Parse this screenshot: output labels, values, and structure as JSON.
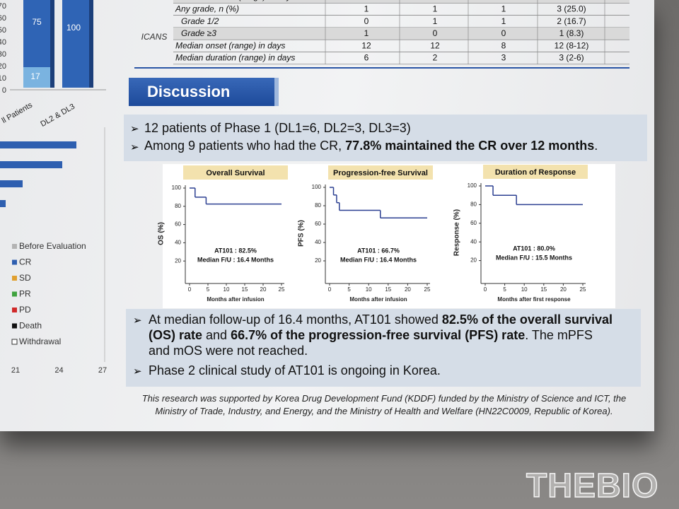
{
  "left_bar_chart": {
    "yticks": [
      0,
      10,
      20,
      30,
      40,
      50,
      60,
      70
    ],
    "bar_labels": [
      "75",
      "100",
      "17"
    ],
    "categories": [
      "ll Patients",
      "DL2 & DL3"
    ]
  },
  "left_swimmer_legend": {
    "entries": [
      {
        "label": "Before Evaluation",
        "color": "#b3b3b3"
      },
      {
        "label": "CR",
        "color": "#2e5fb0"
      },
      {
        "label": "SD",
        "color": "#e0a030"
      },
      {
        "label": "PR",
        "color": "#3fa33f"
      },
      {
        "label": "PD",
        "color": "#d02a2a"
      },
      {
        "label": "Death",
        "color": "#111111"
      },
      {
        "label": "Withdrawal",
        "color": "#ffffff"
      }
    ],
    "xticks": [
      21,
      24,
      27
    ]
  },
  "table": {
    "group_label": "ICANS",
    "rows": [
      [
        "Median duration (range) in days",
        "",
        "",
        "",
        ""
      ],
      [
        "Any grade, n (%)",
        "1",
        "1",
        "1",
        "3 (25.0)"
      ],
      [
        "Grade 1/2",
        "0",
        "1",
        "1",
        "2 (16.7)"
      ],
      [
        "Grade ≥3",
        "1",
        "0",
        "0",
        "1 (8.3)"
      ],
      [
        "Median onset (range) in days",
        "12",
        "12",
        "8",
        "12 (8-12)"
      ],
      [
        "Median duration (range) in days",
        "6",
        "2",
        "3",
        "3 (2-6)"
      ]
    ]
  },
  "section_title": "Discussion",
  "bullets_top": [
    [
      "12 patients of Phase 1 (DL1=6, DL2=3, DL3=3)"
    ],
    [
      "Among 9 patients who had the CR, ",
      "77.8% maintained the CR over 12 months",
      "."
    ]
  ],
  "km_plots": [
    {
      "title": "Overall Survival",
      "y_label": "OS (%)",
      "x_label": "Months after infusion",
      "ylim": [
        0,
        100
      ],
      "yticks": [
        20,
        40,
        60,
        80,
        100
      ],
      "xlim": [
        0,
        25
      ],
      "xticks": [
        0,
        5,
        10,
        15,
        20,
        25
      ],
      "x": [
        0,
        1.5,
        4.5,
        25
      ],
      "y": [
        100,
        90,
        82.5,
        82.5
      ],
      "annotation": [
        "AT101 : 82.5%",
        "Median F/U : 16.4 Months"
      ]
    },
    {
      "title": "Progression-free Survival",
      "y_label": "PFS (%)",
      "x_label": "Months after infusion",
      "ylim": [
        0,
        100
      ],
      "yticks": [
        20,
        40,
        60,
        80,
        100
      ],
      "xlim": [
        0,
        25
      ],
      "xticks": [
        0,
        5,
        10,
        15,
        20,
        25
      ],
      "x": [
        0,
        1,
        1.8,
        2.5,
        13,
        25
      ],
      "y": [
        100,
        91.7,
        83.3,
        75,
        66.7,
        66.7
      ],
      "annotation": [
        "AT101 : 66.7%",
        "Median F/U : 16.4 Months"
      ]
    },
    {
      "title": "Duration of Response",
      "y_label": "Response (%)",
      "x_label": "Months after first response",
      "ylim": [
        0,
        100
      ],
      "yticks": [
        20,
        40,
        60,
        80,
        100
      ],
      "xlim": [
        0,
        25
      ],
      "xticks": [
        0,
        5,
        10,
        15,
        20,
        25
      ],
      "x": [
        0,
        2,
        8,
        25
      ],
      "y": [
        100,
        90,
        80,
        80
      ],
      "annotation": [
        "AT101 : 80.0%",
        "Median F/U : 15.5 Months"
      ]
    }
  ],
  "bullets_bottom": [
    [
      "At median follow-up of 16.4 months, AT101 showed ",
      "82.5% of the overall survival (OS) rate",
      " and ",
      "66.7% of the progression-free survival (PFS) rate",
      ". The mPFS and mOS were not reached."
    ],
    [
      "Phase 2 clinical study of AT101 is ongoing in Korea."
    ]
  ],
  "footer": "This research was supported by Korea Drug Development Fund (KDDF) funded by the Ministry of Science and ICT, the Ministry of Trade, Industry, and Energy, and the Ministry of Health and Welfare (HN22C0009, Republic of Korea).",
  "watermark": "THEBIO"
}
